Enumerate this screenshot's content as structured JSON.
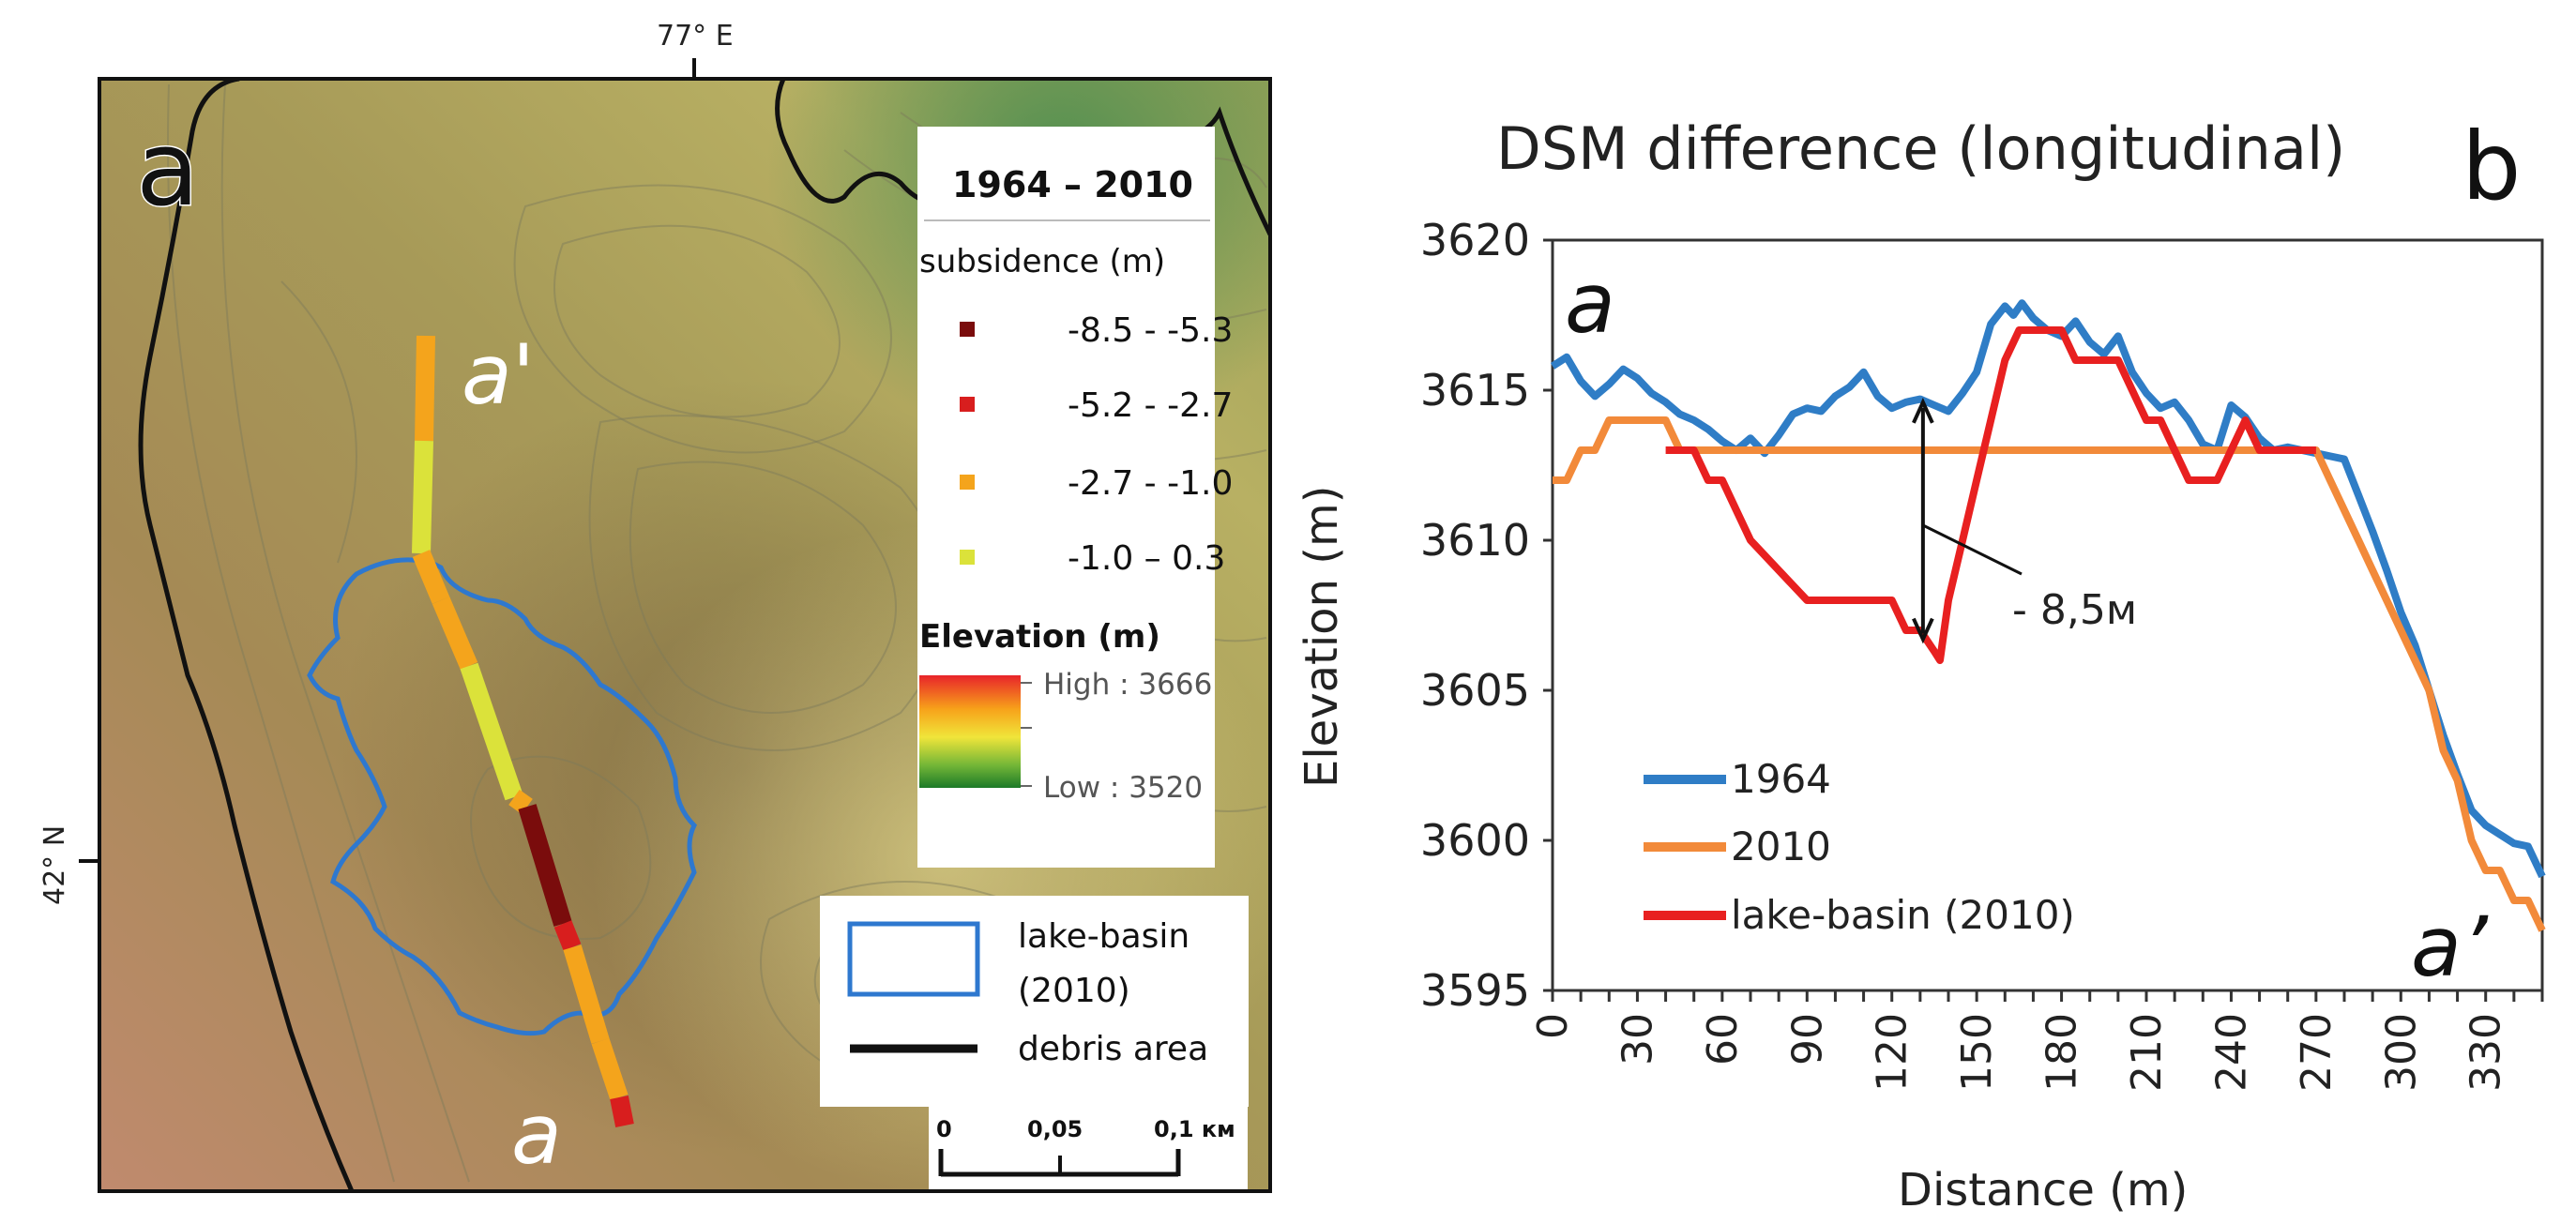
{
  "panel_a": {
    "label": "a",
    "lon_label": "77° E",
    "lat_label": "42° N",
    "profile_start": "a",
    "profile_end": "a'",
    "legend": {
      "title": "1964 –  2010",
      "subsidence_title": "subsidence (m)",
      "classes": [
        {
          "label": "-8.5 - -5.3",
          "color": "#7a0c0c"
        },
        {
          "label": "-5.2 - -2.7",
          "color": "#d81e1e"
        },
        {
          "label": "-2.7 - -1.0",
          "color": "#f4a41c"
        },
        {
          "label": "-1.0 – 0.3",
          "color": "#dbe23a"
        }
      ],
      "elevation_title": "Elevation (m)",
      "elev_high": "High : 3666",
      "elev_low": "Low : 3520"
    },
    "legend2": {
      "basin_label_1": "lake-basin",
      "basin_label_2": "(2010)",
      "debris_label": "debris area"
    },
    "scalebar": {
      "ticks": [
        "0",
        "0,05",
        "0,1 км"
      ]
    }
  },
  "chart_data": {
    "type": "line",
    "panel_label": "b",
    "title": "DSM difference (longitudinal)",
    "xlabel": "Distance (m)",
    "ylabel": "Elevation (m)",
    "xlim": [
      0,
      350
    ],
    "ylim": [
      3595,
      3620
    ],
    "xticks": [
      0,
      30,
      60,
      90,
      120,
      150,
      180,
      210,
      240,
      270,
      300,
      330
    ],
    "yticks": [
      3595,
      3600,
      3605,
      3610,
      3615,
      3620
    ],
    "start_label": "a",
    "end_label": "a’",
    "annotation": "- 8,5м",
    "series": [
      {
        "name": "1964",
        "color": "#2f7dc6",
        "x": [
          0,
          5,
          10,
          15,
          20,
          25,
          30,
          35,
          40,
          45,
          50,
          55,
          60,
          65,
          70,
          75,
          80,
          85,
          90,
          95,
          100,
          105,
          110,
          115,
          120,
          125,
          130,
          135,
          140,
          145,
          150,
          155,
          160,
          163,
          166,
          170,
          175,
          180,
          185,
          190,
          195,
          200,
          205,
          210,
          215,
          220,
          225,
          230,
          235,
          240,
          245,
          250,
          255,
          260,
          265,
          270,
          275,
          280,
          285,
          290,
          295,
          300,
          305,
          310,
          315,
          320,
          325,
          330,
          335,
          340,
          345,
          350
        ],
        "values": [
          3615.8,
          3616.1,
          3615.3,
          3614.8,
          3615.2,
          3615.7,
          3615.4,
          3614.9,
          3614.6,
          3614.2,
          3614.0,
          3613.7,
          3613.3,
          3613.0,
          3613.4,
          3612.9,
          3613.5,
          3614.2,
          3614.4,
          3614.3,
          3614.8,
          3615.1,
          3615.6,
          3614.8,
          3614.4,
          3614.6,
          3614.7,
          3614.5,
          3614.3,
          3614.9,
          3615.6,
          3617.2,
          3617.8,
          3617.5,
          3617.9,
          3617.4,
          3617.0,
          3616.8,
          3617.3,
          3616.6,
          3616.2,
          3616.8,
          3615.6,
          3614.9,
          3614.4,
          3614.6,
          3614.0,
          3613.2,
          3613.0,
          3614.5,
          3614.1,
          3613.4,
          3613.0,
          3613.1,
          3613.0,
          3612.9,
          3612.8,
          3612.7,
          3611.5,
          3610.3,
          3609.0,
          3607.6,
          3606.5,
          3605.0,
          3603.5,
          3602.2,
          3601.0,
          3600.5,
          3600.2,
          3599.9,
          3599.8,
          3598.8
        ]
      },
      {
        "name": "2010",
        "color": "#f28a3a",
        "x": [
          0,
          5,
          10,
          15,
          20,
          25,
          30,
          35,
          40,
          45,
          265,
          270,
          275,
          280,
          285,
          290,
          295,
          300,
          305,
          310,
          315,
          320,
          325,
          330,
          335,
          340,
          345,
          350
        ],
        "values": [
          3612,
          3612,
          3613,
          3613,
          3614,
          3614,
          3614,
          3614,
          3614,
          3613,
          3613,
          3613,
          3612,
          3611,
          3610,
          3609,
          3608,
          3607,
          3606,
          3605,
          3603,
          3602,
          3600,
          3599,
          3599,
          3598,
          3598,
          3597
        ]
      },
      {
        "name": "lake-basin (2010)",
        "color": "#e82020",
        "x": [
          40,
          50,
          55,
          60,
          65,
          70,
          80,
          90,
          95,
          100,
          110,
          120,
          125,
          130,
          135,
          137,
          140,
          145,
          150,
          155,
          160,
          165,
          170,
          175,
          180,
          185,
          190,
          195,
          200,
          205,
          210,
          215,
          220,
          225,
          230,
          235,
          240,
          245,
          250,
          255,
          260,
          265,
          270
        ],
        "values": [
          3613,
          3613,
          3612,
          3612,
          3611,
          3610,
          3609,
          3608,
          3608,
          3608,
          3608,
          3608,
          3607,
          3607,
          3606.3,
          3606,
          3608,
          3610,
          3612,
          3614,
          3616,
          3617,
          3617,
          3617,
          3617,
          3616,
          3616,
          3616,
          3616,
          3615,
          3614,
          3614,
          3613,
          3612,
          3612,
          3612,
          3613,
          3614,
          3613,
          3613,
          3613,
          3613,
          3613
        ]
      }
    ]
  }
}
